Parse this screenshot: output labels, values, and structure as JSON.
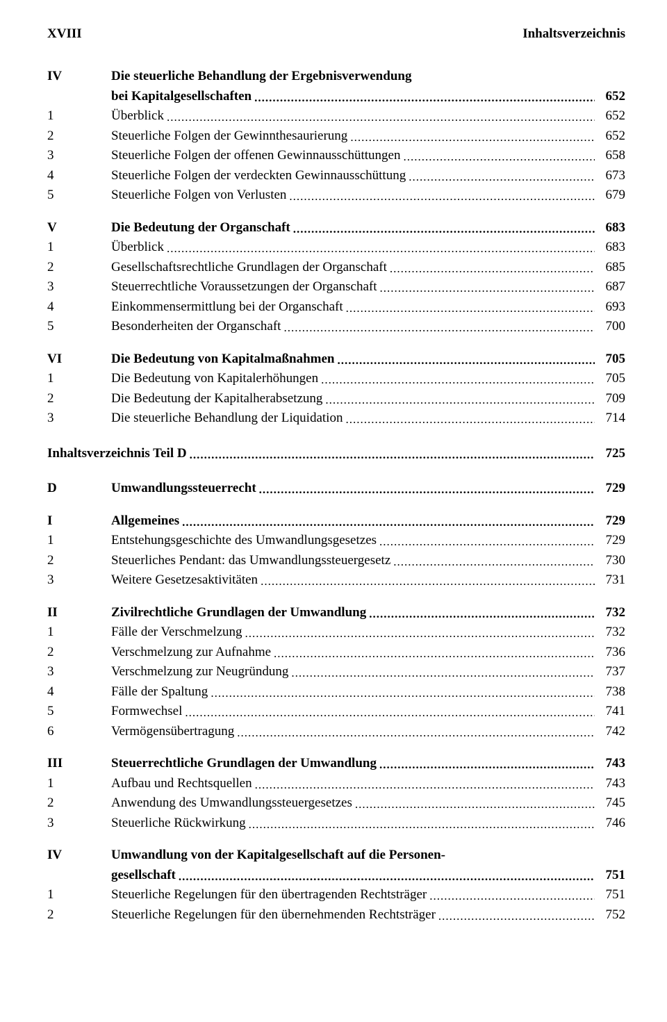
{
  "header": {
    "left": "XVIII",
    "right": "Inhaltsverzeichnis"
  },
  "entries": [
    {
      "num": "IV",
      "title": "Die steuerliche Behandlung der Ergebnisverwendung",
      "page": "",
      "bold": true,
      "noleader": true
    },
    {
      "num": "",
      "title": "bei Kapitalgesellschaften",
      "page": "652",
      "bold": true
    },
    {
      "num": "1",
      "title": "Überblick",
      "page": "652"
    },
    {
      "num": "2",
      "title": "Steuerliche Folgen der Gewinnthesaurierung",
      "page": "652"
    },
    {
      "num": "3",
      "title": "Steuerliche Folgen der offenen Gewinnausschüttungen",
      "page": "658"
    },
    {
      "num": "4",
      "title": "Steuerliche Folgen der verdeckten Gewinnausschüttung",
      "page": "673"
    },
    {
      "num": "5",
      "title": "Steuerliche Folgen von Verlusten",
      "page": "679"
    },
    {
      "gap": "md"
    },
    {
      "num": "V",
      "title": "Die Bedeutung der Organschaft",
      "page": "683",
      "bold": true
    },
    {
      "num": "1",
      "title": "Überblick",
      "page": "683"
    },
    {
      "num": "2",
      "title": "Gesellschaftsrechtliche Grundlagen der Organschaft",
      "page": "685"
    },
    {
      "num": "3",
      "title": "Steuerrechtliche Voraussetzungen der Organschaft",
      "page": "687"
    },
    {
      "num": "4",
      "title": "Einkommensermittlung bei der Organschaft",
      "page": "693"
    },
    {
      "num": "5",
      "title": "Besonderheiten der Organschaft",
      "page": "700"
    },
    {
      "gap": "md"
    },
    {
      "num": "VI",
      "title": "Die Bedeutung von Kapitalmaßnahmen",
      "page": "705",
      "bold": true
    },
    {
      "num": "1",
      "title": "Die Bedeutung von Kapitalerhöhungen",
      "page": "705"
    },
    {
      "num": "2",
      "title": "Die Bedeutung der Kapitalherabsetzung",
      "page": "709"
    },
    {
      "num": "3",
      "title": "Die steuerliche Behandlung der Liquidation",
      "page": "714"
    },
    {
      "gap": "lg"
    },
    {
      "full": true,
      "title": "Inhaltsverzeichnis Teil D",
      "page": "725",
      "bold": true
    },
    {
      "gap": "lg"
    },
    {
      "num": "D",
      "title": "Umwandlungssteuerrecht",
      "page": "729",
      "bold": true
    },
    {
      "gap": "md"
    },
    {
      "num": "I",
      "title": "Allgemeines",
      "page": "729",
      "bold": true
    },
    {
      "num": "1",
      "title": "Entstehungsgeschichte des Umwandlungsgesetzes",
      "page": "729"
    },
    {
      "num": "2",
      "title": "Steuerliches Pendant: das Umwandlungssteuergesetz",
      "page": "730"
    },
    {
      "num": "3",
      "title": "Weitere Gesetzesaktivitäten",
      "page": "731"
    },
    {
      "gap": "md"
    },
    {
      "num": "II",
      "title": "Zivilrechtliche Grundlagen der Umwandlung",
      "page": "732",
      "bold": true
    },
    {
      "num": "1",
      "title": "Fälle der Verschmelzung",
      "page": "732"
    },
    {
      "num": "2",
      "title": "Verschmelzung zur Aufnahme",
      "page": "736"
    },
    {
      "num": "3",
      "title": "Verschmelzung zur Neugründung",
      "page": "737"
    },
    {
      "num": "4",
      "title": "Fälle der Spaltung",
      "page": "738"
    },
    {
      "num": "5",
      "title": "Formwechsel",
      "page": "741"
    },
    {
      "num": "6",
      "title": "Vermögensübertragung",
      "page": "742"
    },
    {
      "gap": "md"
    },
    {
      "num": "III",
      "title": "Steuerrechtliche Grundlagen der Umwandlung",
      "page": "743",
      "bold": true
    },
    {
      "num": "1",
      "title": "Aufbau und Rechtsquellen",
      "page": "743"
    },
    {
      "num": "2",
      "title": "Anwendung des Umwandlungssteuergesetzes",
      "page": "745"
    },
    {
      "num": "3",
      "title": "Steuerliche Rückwirkung",
      "page": "746"
    },
    {
      "gap": "md"
    },
    {
      "num": "IV",
      "title": "Umwandlung von der Kapitalgesellschaft auf die Personen-",
      "page": "",
      "bold": true,
      "noleader": true
    },
    {
      "num": "",
      "title": "gesellschaft",
      "page": "751",
      "bold": true
    },
    {
      "num": "1",
      "title": "Steuerliche Regelungen für den übertragenden Rechtsträger",
      "page": "751"
    },
    {
      "num": "2",
      "title": "Steuerliche Regelungen für den übernehmenden Rechtsträger",
      "page": "752"
    }
  ]
}
